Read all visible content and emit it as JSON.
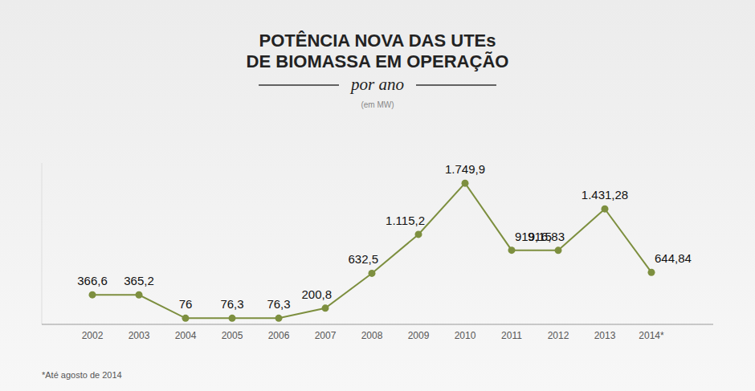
{
  "chart_data": {
    "type": "line",
    "title": "POTÊNCIA NOVA DAS UTEs DE BIOMASSA EM OPERAÇÃO",
    "subtitle": "por ano",
    "y_label": "(em MW)",
    "annotations": [
      "*Até agosto de 2014"
    ],
    "categories": [
      "2002",
      "2003",
      "2004",
      "2005",
      "2006",
      "2007",
      "2008",
      "2009",
      "2010",
      "2011",
      "2012",
      "2013",
      "2014*"
    ],
    "values": [
      366.6,
      365.2,
      76,
      76.3,
      76.3,
      200.8,
      632.5,
      1115.2,
      1749.9,
      919.15,
      916.83,
      1431.28,
      644.84
    ],
    "value_labels": [
      "366,6",
      "365,2",
      "76",
      "76,3",
      "76,3",
      "200,8",
      "632,5",
      "1.115,2",
      "1.749,9",
      "919,15",
      "916,83",
      "1.431,28",
      "644,84"
    ],
    "color": "#7d8f3f",
    "marker": "circle",
    "ylim": [
      0,
      2000
    ],
    "yticks": [],
    "grid": false,
    "data_labels": true,
    "tick_labels": "x"
  }
}
